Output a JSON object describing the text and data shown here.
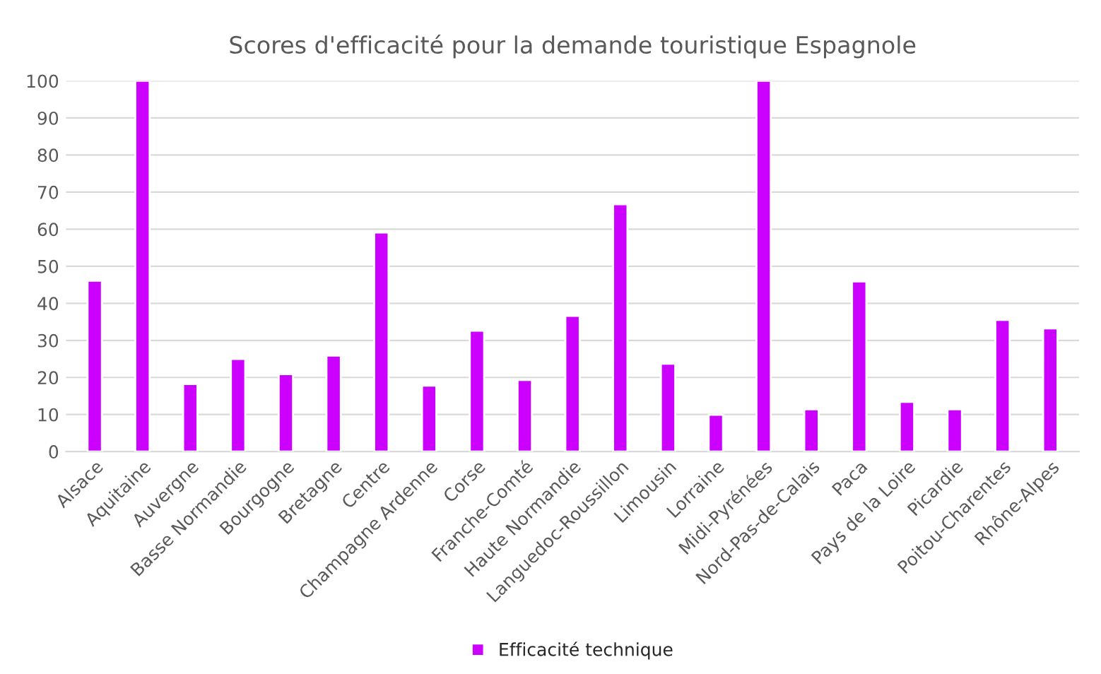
{
  "chart_data": {
    "type": "bar",
    "title": "Scores d'efficacité pour la demande touristique Espagnole",
    "categories": [
      "Alsace",
      "Aquitaine",
      "Auvergne",
      "Basse Normandie",
      "Bourgogne",
      "Bretagne",
      "Centre",
      "Champagne Ardenne",
      "Corse",
      "Franche-Comté",
      "Haute Normandie",
      "Languedoc-Roussillon",
      "Limousin",
      "Lorraine",
      "Midi-Pyrénées",
      "Nord-Pas-de-Calais",
      "Paca",
      "Pays de la Loire",
      "Picardie",
      "Poitou-Charentes",
      "Rhône-Alpes"
    ],
    "series": [
      {
        "name": "Efficacité technique",
        "color": "#cc00ff",
        "values": [
          46.1,
          100,
          18.2,
          25,
          20.9,
          25.9,
          59.1,
          17.8,
          32.6,
          19.3,
          36.6,
          66.7,
          23.7,
          9.9,
          100,
          11.4,
          45.9,
          13.4,
          11.4,
          35.5,
          33.2
        ]
      }
    ],
    "ylim": [
      0,
      100
    ],
    "yticks": [
      0,
      10,
      20,
      30,
      40,
      50,
      60,
      70,
      80,
      90,
      100
    ],
    "grid": "y",
    "legend": "bottom"
  }
}
